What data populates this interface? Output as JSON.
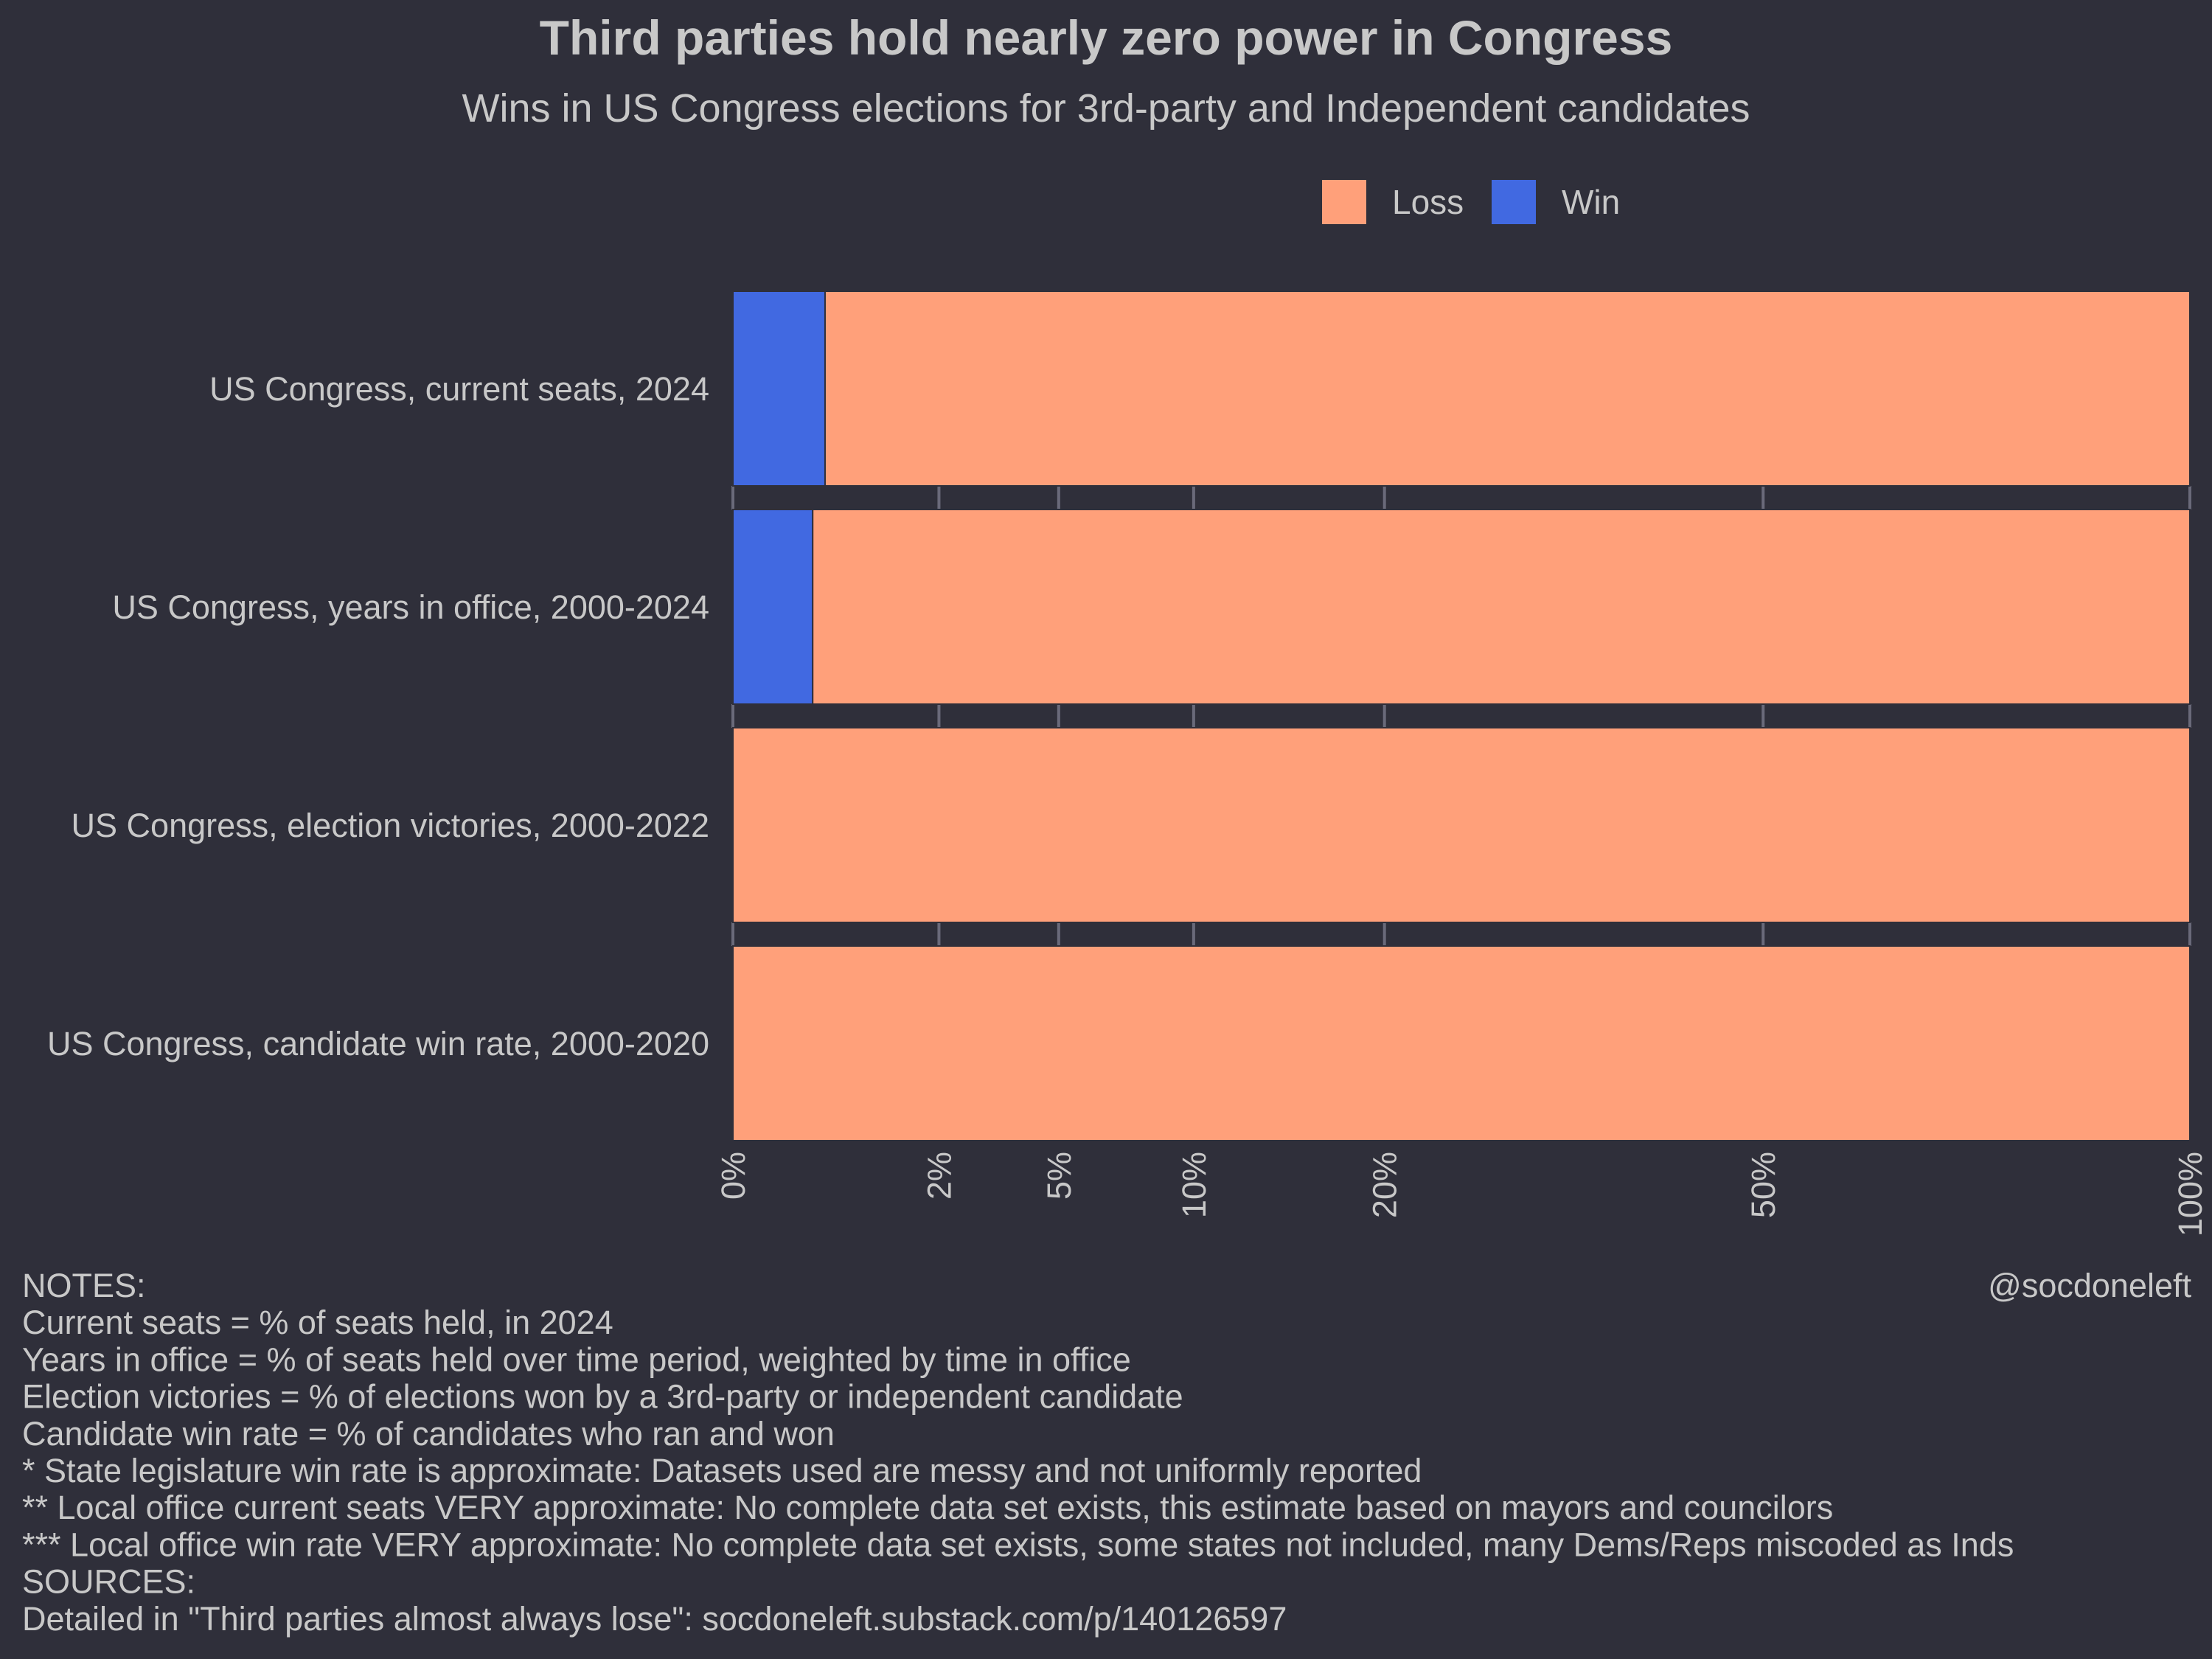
{
  "chart_data": {
    "type": "bar",
    "title": "Third parties hold nearly zero power in Congress",
    "subtitle": "Wins in US Congress elections for 3rd-party and Independent candidates",
    "orientation": "horizontal-stacked",
    "x_scale": "sqrt",
    "xlim": [
      0,
      100
    ],
    "xlabel": "",
    "ylabel": "",
    "legend_position": "top",
    "categories": [
      "US Congress, current seats, 2024",
      "US Congress, years in office, 2000-2024",
      "US Congress, election victories, 2000-2022",
      "US Congress, candidate win rate, 2000-2020"
    ],
    "series": [
      {
        "name": "Win",
        "values": [
          0.4,
          0.3,
          0.0,
          0.0
        ],
        "color": "#4169e1"
      },
      {
        "name": "Loss",
        "values": [
          99.6,
          99.7,
          100.0,
          100.0
        ],
        "color": "#ffa07a"
      }
    ],
    "legend_order": [
      "Loss",
      "Win"
    ],
    "x_ticks": [
      0,
      2,
      5,
      10,
      20,
      50,
      100
    ],
    "x_tick_labels": [
      "0%",
      "2%",
      "5%",
      "10%",
      "20%",
      "50%",
      "100%"
    ]
  },
  "notes": [
    "NOTES:",
    "Current seats = % of seats held, in 2024",
    "Years in office = % of seats held over time period, weighted by time in office",
    "Election victories = % of elections won by a 3rd-party or independent candidate",
    "Candidate win rate = % of candidates who ran and won",
    "* State legislature win rate is approximate: Datasets used are messy and not uniformly reported",
    "** Local office current seats VERY approximate: No complete data set exists, this estimate based on mayors and councilors",
    "*** Local office win rate VERY approximate: No complete data set exists, some states not included, many Dems/Reps miscoded as Inds",
    "SOURCES:",
    "Detailed in \"Third parties almost always lose\": socdoneleft.substack.com/p/140126597"
  ],
  "credit": "@socdoneleft",
  "colors": {
    "background": "#2f2f3a",
    "text": "#c8c8c8",
    "tick": "#6a6a7a"
  }
}
